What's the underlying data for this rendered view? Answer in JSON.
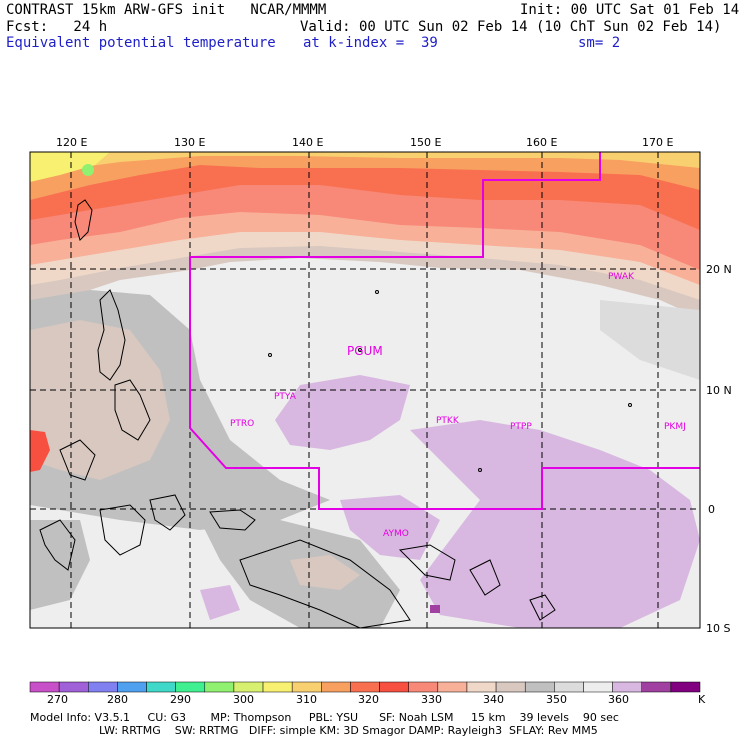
{
  "header": {
    "line1_left": "CONTRAST 15km ARW-GFS init   NCAR/MMMM",
    "line1_right": "Init: 00 UTC Sat 01 Feb 14",
    "line2_left": "Fcst:   24 h",
    "line2_right": "Valid: 00 UTC Sun 02 Feb 14 (10 ChT Sun 02 Feb 14)",
    "line3_left": "Equivalent potential temperature",
    "line3_mid": "at k-index =  39",
    "line3_right": "sm= 2"
  },
  "map": {
    "lon_labels": [
      "120 E",
      "130 E",
      "140 E",
      "150 E",
      "160 E",
      "170 E"
    ],
    "lat_labels": [
      "20 N",
      "10 N",
      "0",
      "10 S"
    ],
    "stations": [
      "PGUM",
      "PTYA",
      "PTRO",
      "PTKK",
      "PTPP",
      "PKMJ",
      "PWAK",
      "AYMO"
    ],
    "colors": {
      "boundary": "#e400e4",
      "land": "#000000",
      "background": "#eeeeee"
    }
  },
  "colorbar": {
    "labels": [
      "270",
      "280",
      "290",
      "300",
      "310",
      "320",
      "330",
      "340",
      "350",
      "360",
      "K"
    ],
    "colors": [
      "#c850c8",
      "#a060d8",
      "#8080f0",
      "#50a0f0",
      "#40d8c8",
      "#40f090",
      "#90f070",
      "#d8f070",
      "#f8f070",
      "#f8d070",
      "#f8a060",
      "#f87050",
      "#f85040",
      "#f88878",
      "#f8b098",
      "#f0d8c8",
      "#d8c8c0",
      "#c0c0c0",
      "#dcdcdc",
      "#eeeeee",
      "#d8b8e0",
      "#a040a0",
      "#800080"
    ]
  },
  "footer": {
    "line1": "Model Info: V3.5.1     CU: G3       MP: Thompson     PBL: YSU      SF: Noah LSM     15 km    39 levels    90 sec",
    "line2": "LW: RRTMG    SW: RRTMG   DIFF: simple KM: 3D Smagor DAMP: Rayleigh3  SFLAY: Rev MM5"
  }
}
